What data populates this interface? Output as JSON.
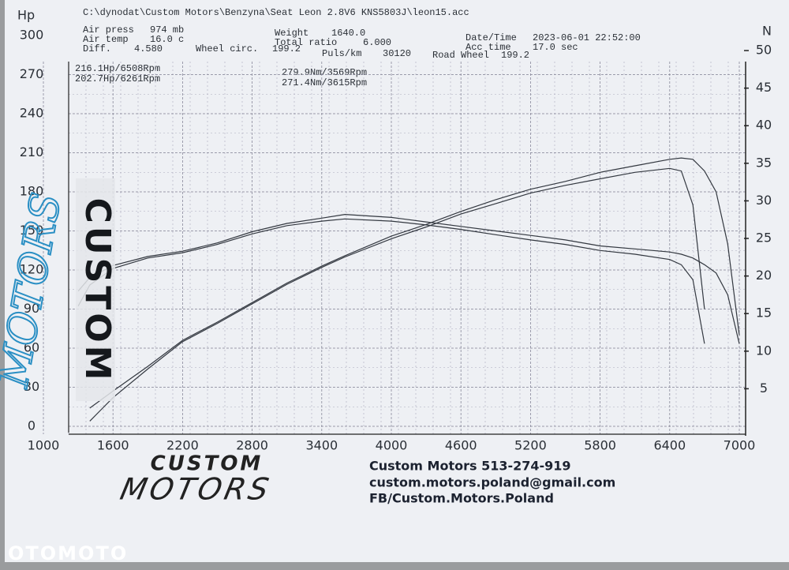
{
  "chart_data": {
    "type": "line",
    "file": "C:\\dynodat\\Custom Motors\\Benzyna\\Seat Leon 2.8V6 KNS5803J\\leon15.acc",
    "info": [
      {
        "label": "Air press",
        "value": "974 mb"
      },
      {
        "label": "Air temp",
        "value": "16.0 c"
      },
      {
        "label": "Diff.",
        "value": "4.580"
      },
      {
        "label": "Wheel circ.",
        "value": "199.2"
      },
      {
        "label": "Weight",
        "value": "1640.0"
      },
      {
        "label": "Total ratio",
        "value": "6.000"
      },
      {
        "label": "Puls/km",
        "value": "30120"
      },
      {
        "label": "Road Wheel",
        "value": "199.2"
      },
      {
        "label": "Date/Time",
        "value": "2023-06-01 22:52:00"
      },
      {
        "label": "Acc time",
        "value": "17.0 sec"
      }
    ],
    "annotations": [
      "216.1Hp/6508Rpm",
      "202.7Hp/6261Rpm",
      "279.9Nm/3569Rpm",
      "271.4Nm/3615Rpm"
    ],
    "ylabel": "Hp",
    "y2label": "N",
    "x": [
      1300,
      1400,
      1600,
      1900,
      2200,
      2500,
      2800,
      3100,
      3400,
      3600,
      4000,
      4300,
      4600,
      4900,
      5200,
      5500,
      5800,
      6100,
      6400,
      6500,
      6600,
      6700,
      6800,
      6900,
      7000
    ],
    "xlim": [
      1000,
      7000
    ],
    "xticks": [
      1000,
      1600,
      2200,
      2800,
      3400,
      4000,
      4600,
      5200,
      5800,
      6400,
      7000
    ],
    "ylim": [
      0,
      300
    ],
    "yticks": [
      0,
      30,
      60,
      90,
      120,
      150,
      180,
      210,
      240,
      270,
      300
    ],
    "y2lim": [
      0,
      52
    ],
    "y2ticks": [
      5,
      10,
      15,
      20,
      25,
      30,
      35,
      40,
      45,
      50
    ],
    "grid": true,
    "series": [
      {
        "color": "#333840",
        "values": [
          null,
          14,
          27,
          46,
          66,
          80,
          95,
          110,
          123,
          131,
          146,
          155,
          165,
          174,
          182,
          188,
          195,
          200,
          205,
          206,
          205,
          196,
          180,
          140,
          70
        ]
      },
      {
        "color": "#333840",
        "values": [
          null,
          4,
          22,
          44,
          65,
          79,
          94,
          109,
          122,
          130,
          144,
          153,
          163,
          171,
          179,
          185,
          190,
          195,
          198,
          196,
          170,
          90,
          null,
          null,
          null
        ]
      },
      {
        "color": "#333840",
        "axis": "y2",
        "values": [
          18.0,
          19.8,
          21.4,
          22.6,
          23.3,
          24.4,
          25.9,
          27.0,
          27.7,
          28.2,
          27.8,
          27.2,
          26.6,
          26.0,
          25.4,
          24.8,
          24.0,
          23.6,
          23.2,
          22.9,
          22.4,
          21.5,
          20.4,
          17.5,
          11.0
        ]
      },
      {
        "color": "#333840",
        "axis": "y2",
        "values": [
          16.0,
          18.8,
          21.0,
          22.4,
          23.1,
          24.2,
          25.6,
          26.7,
          27.3,
          27.6,
          27.3,
          26.8,
          26.2,
          25.5,
          24.8,
          24.2,
          23.4,
          22.9,
          22.2,
          21.5,
          19.5,
          11.0,
          null,
          null,
          null
        ]
      }
    ]
  },
  "footer": {
    "logo_top": "CUSTOM",
    "logo_bottom": "MOTORS",
    "contact": "Custom Motors   513-274-919",
    "email": "custom.motors.poland@gmail.com",
    "facebook": "FB/Custom.Motors.Poland"
  },
  "overlay": {
    "sticker": "CUSTOM",
    "handwriting": "MOTORS",
    "watermark": "OTOMOTO"
  }
}
